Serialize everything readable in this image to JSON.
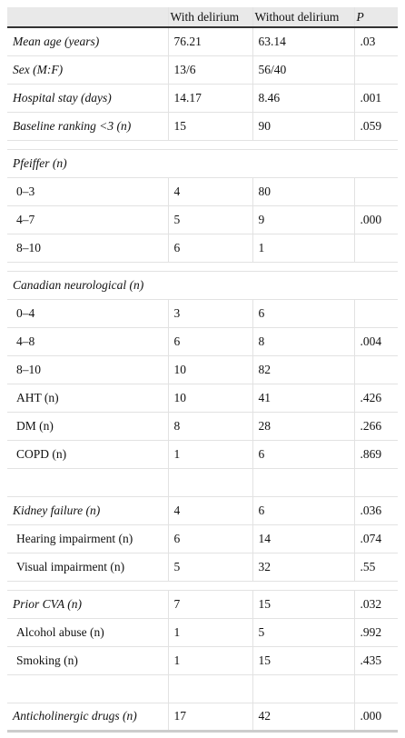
{
  "table": {
    "columns": [
      "With delirium",
      "Without delirium",
      "P"
    ],
    "rows": [
      {
        "label": "Mean age (years)",
        "with": "76.21",
        "without": "63.14",
        "p": ".03"
      },
      {
        "label": "Sex (M:F)",
        "with": "13/6",
        "without": "56/40"
      },
      {
        "label": "Hospital stay (days)",
        "with": "14.17",
        "without": "8.46",
        "p": ".001"
      },
      {
        "label": "Baseline ranking <3 (n)",
        "with": "15",
        "without": "90",
        "p": ".059"
      },
      {
        "label": "Pfeiffer (n)"
      },
      {
        "label": "0–3",
        "with": "4",
        "without": "80"
      },
      {
        "label": "4–7",
        "with": "5",
        "without": "9",
        "p": ".000"
      },
      {
        "label": "8–10",
        "with": "6",
        "without": "1"
      },
      {
        "label": "Canadian neurological (n)"
      },
      {
        "label": "0–4",
        "with": "3",
        "without": "6"
      },
      {
        "label": "4–8",
        "with": "6",
        "without": "8",
        "p": ".004"
      },
      {
        "label": "8–10",
        "with": "10",
        "without": "82"
      },
      {
        "label": "AHT (n)",
        "with": "10",
        "without": "41",
        "p": ".426"
      },
      {
        "label": "DM (n)",
        "with": "8",
        "without": "28",
        "p": ".266"
      },
      {
        "label": "COPD (n)",
        "with": "1",
        "without": "6",
        "p": ".869"
      },
      {
        "label": "Kidney failure (n)",
        "with": "4",
        "without": "6",
        "p": ".036"
      },
      {
        "label": "Hearing impairment (n)",
        "with": "6",
        "without": "14",
        "p": ".074"
      },
      {
        "label": "Visual impairment (n)",
        "with": "5",
        "without": "32",
        "p": ".55"
      },
      {
        "label": "Prior CVA (n)",
        "with": "7",
        "without": "15",
        "p": ".032"
      },
      {
        "label": "Alcohol abuse (n)",
        "with": "1",
        "without": "5",
        "p": ".992"
      },
      {
        "label": "Smoking (n)",
        "with": "1",
        "without": "15",
        "p": ".435"
      },
      {
        "label": "Anticholinergic drugs (n)",
        "with": "17",
        "without": "42",
        "p": ".000"
      }
    ]
  }
}
